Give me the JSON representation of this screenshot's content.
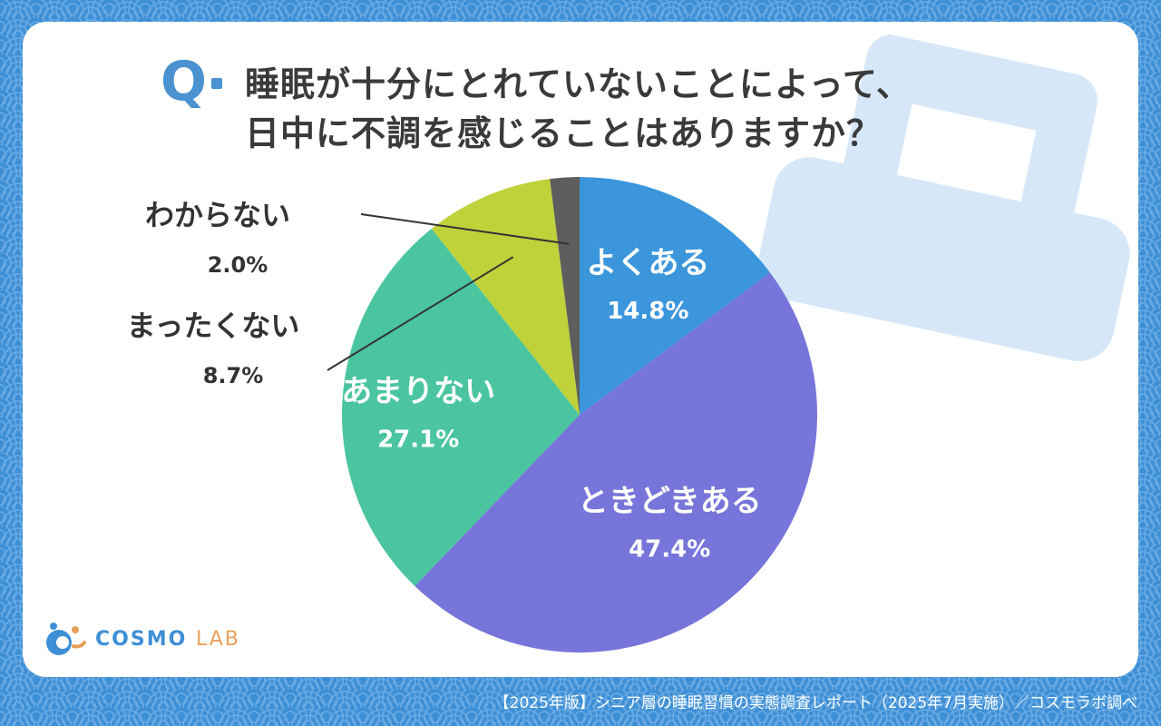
{
  "question": {
    "mark": "Q",
    "lines": [
      "睡眠が十分にとれていないことによって、",
      "日中に不調を感じることはありますか？"
    ]
  },
  "chart_data": {
    "type": "pie",
    "title": "睡眠が十分にとれていないことによって、日中に不調を感じることはありますか？",
    "start_angle_deg": 0,
    "direction": "clockwise",
    "slices": [
      {
        "label": "よくある",
        "value": 14.8,
        "display_value": "14.8%",
        "color": "#3b96dc",
        "label_color": "#ffffff",
        "placement": "inside"
      },
      {
        "label": "ときどきある",
        "value": 47.4,
        "display_value": "47.4%",
        "color": "#7775d9",
        "label_color": "#ffffff",
        "placement": "inside"
      },
      {
        "label": "あまりない",
        "value": 27.1,
        "display_value": "27.1%",
        "color": "#4ac5a0",
        "label_color": "#ffffff",
        "placement": "inside"
      },
      {
        "label": "まったくない",
        "value": 8.7,
        "display_value": "8.7%",
        "color": "#bfd23a",
        "label_color": "#333333",
        "placement": "outside-left"
      },
      {
        "label": "わからない",
        "value": 2.0,
        "display_value": "2.0%",
        "color": "#5e5e5e",
        "label_color": "#333333",
        "placement": "outside-left"
      }
    ]
  },
  "logo": {
    "name": "COSMO",
    "suffix": "LAB"
  },
  "footer": "【2025年版】シニア層の睡眠習慣の実態調査レポート（2025年7月実施）／コスモラボ調べ",
  "colors": {
    "background": "#3d8fd6",
    "card": "#ffffff",
    "accent": "#4a92d0",
    "decoration": "#d6e8f7"
  }
}
